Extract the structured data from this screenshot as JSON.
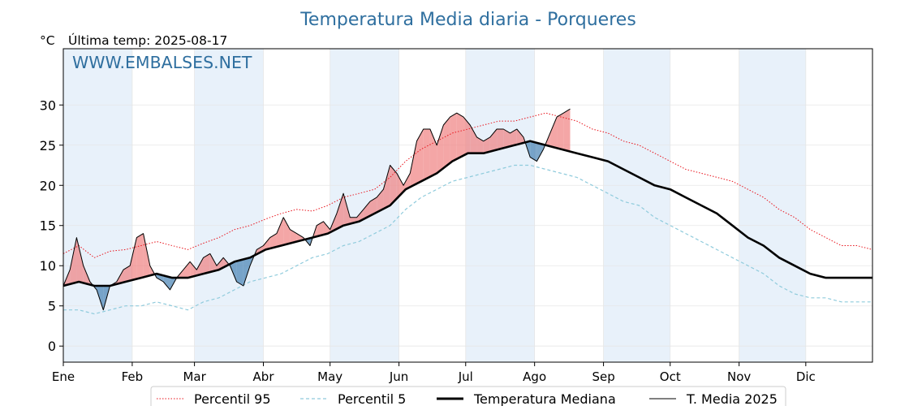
{
  "title": "Temperatura Media diaria - Porqueres",
  "unit": "°C",
  "last_temp": "Última temp: 2025-08-17",
  "watermark": "WWW.EMBALSES.NET",
  "colors": {
    "title": "#2f6f9f",
    "watermark": "#2f6f9f",
    "p95": "#e8141c",
    "p5": "#8fcbdc",
    "median": "#000000",
    "media2025": "#000000",
    "above_fill": "#f08080",
    "below_fill": "#4682b4",
    "month_band": "#e8f1fa"
  },
  "chart_data": {
    "type": "line",
    "x_unit": "day of year",
    "xlim": [
      1,
      365
    ],
    "ylim": [
      -2,
      37
    ],
    "y_ticks": [
      0,
      5,
      10,
      15,
      20,
      25,
      30
    ],
    "months": [
      {
        "label": "Ene",
        "day": 1
      },
      {
        "label": "Feb",
        "day": 32
      },
      {
        "label": "Mar",
        "day": 60
      },
      {
        "label": "Abr",
        "day": 91
      },
      {
        "label": "May",
        "day": 121
      },
      {
        "label": "Jun",
        "day": 152
      },
      {
        "label": "Jul",
        "day": 182
      },
      {
        "label": "Ago",
        "day": 213
      },
      {
        "label": "Sep",
        "day": 244
      },
      {
        "label": "Oct",
        "day": 274
      },
      {
        "label": "Nov",
        "day": 305
      },
      {
        "label": "Dic",
        "day": 335
      }
    ],
    "legend_position": "bottom-center",
    "grid": true,
    "series": [
      {
        "name": "Percentil 95",
        "style": "dotted",
        "x": [
          1,
          8,
          15,
          22,
          29,
          36,
          43,
          50,
          57,
          64,
          71,
          78,
          85,
          92,
          99,
          106,
          113,
          120,
          127,
          134,
          141,
          148,
          155,
          162,
          169,
          176,
          183,
          190,
          197,
          204,
          211,
          218,
          225,
          232,
          239,
          246,
          253,
          260,
          267,
          274,
          281,
          288,
          295,
          302,
          309,
          316,
          323,
          330,
          337,
          344,
          351,
          358,
          365
        ],
        "y": [
          11.5,
          12.5,
          11.0,
          11.8,
          12.0,
          12.5,
          13.0,
          12.5,
          12.0,
          12.8,
          13.5,
          14.5,
          15.0,
          15.8,
          16.5,
          17.0,
          16.8,
          17.5,
          18.5,
          19.0,
          19.5,
          21.0,
          23.0,
          24.5,
          25.5,
          26.5,
          27.0,
          27.5,
          28.0,
          28.0,
          28.5,
          29.0,
          28.5,
          28.0,
          27.0,
          26.5,
          25.5,
          25.0,
          24.0,
          23.0,
          22.0,
          21.5,
          21.0,
          20.5,
          19.5,
          18.5,
          17.0,
          16.0,
          14.5,
          13.5,
          12.5,
          12.5,
          12.0
        ]
      },
      {
        "name": "Percentil 5",
        "style": "dashed",
        "x": [
          1,
          8,
          15,
          22,
          29,
          36,
          43,
          50,
          57,
          64,
          71,
          78,
          85,
          92,
          99,
          106,
          113,
          120,
          127,
          134,
          141,
          148,
          155,
          162,
          169,
          176,
          183,
          190,
          197,
          204,
          211,
          218,
          225,
          232,
          239,
          246,
          253,
          260,
          267,
          274,
          281,
          288,
          295,
          302,
          309,
          316,
          323,
          330,
          337,
          344,
          351,
          358,
          365
        ],
        "y": [
          4.5,
          4.5,
          4.0,
          4.5,
          5.0,
          5.0,
          5.5,
          5.0,
          4.5,
          5.5,
          6.0,
          7.0,
          8.0,
          8.5,
          9.0,
          10.0,
          11.0,
          11.5,
          12.5,
          13.0,
          14.0,
          15.0,
          17.0,
          18.5,
          19.5,
          20.5,
          21.0,
          21.5,
          22.0,
          22.5,
          22.5,
          22.0,
          21.5,
          21.0,
          20.0,
          19.0,
          18.0,
          17.5,
          16.0,
          15.0,
          14.0,
          13.0,
          12.0,
          11.0,
          10.0,
          9.0,
          7.5,
          6.5,
          6.0,
          6.0,
          5.5,
          5.5,
          5.5
        ]
      },
      {
        "name": "Temperatura Mediana",
        "style": "solid-bold",
        "x": [
          1,
          8,
          15,
          22,
          29,
          36,
          43,
          50,
          57,
          64,
          71,
          78,
          85,
          92,
          99,
          106,
          113,
          120,
          127,
          134,
          141,
          148,
          155,
          162,
          169,
          176,
          183,
          190,
          197,
          204,
          211,
          218,
          225,
          232,
          239,
          246,
          253,
          260,
          267,
          274,
          281,
          288,
          295,
          302,
          309,
          316,
          323,
          330,
          337,
          344,
          351,
          358,
          365
        ],
        "y": [
          7.5,
          8.0,
          7.5,
          7.5,
          8.0,
          8.5,
          9.0,
          8.5,
          8.5,
          9.0,
          9.5,
          10.5,
          11.0,
          12.0,
          12.5,
          13.0,
          13.5,
          14.0,
          15.0,
          15.5,
          16.5,
          17.5,
          19.5,
          20.5,
          21.5,
          23.0,
          24.0,
          24.0,
          24.5,
          25.0,
          25.5,
          25.0,
          24.5,
          24.0,
          23.5,
          23.0,
          22.0,
          21.0,
          20.0,
          19.5,
          18.5,
          17.5,
          16.5,
          15.0,
          13.5,
          12.5,
          11.0,
          10.0,
          9.0,
          8.5,
          8.5,
          8.5,
          8.5
        ]
      },
      {
        "name": "T. Media 2025",
        "style": "solid-thin",
        "x": [
          1,
          4,
          7,
          10,
          13,
          16,
          19,
          22,
          25,
          28,
          31,
          34,
          37,
          40,
          43,
          46,
          49,
          52,
          55,
          58,
          61,
          64,
          67,
          70,
          73,
          76,
          79,
          82,
          85,
          88,
          91,
          94,
          97,
          100,
          103,
          106,
          109,
          112,
          115,
          118,
          121,
          124,
          127,
          130,
          133,
          136,
          139,
          142,
          145,
          148,
          151,
          154,
          157,
          160,
          163,
          166,
          169,
          172,
          175,
          178,
          181,
          184,
          187,
          190,
          193,
          196,
          199,
          202,
          205,
          208,
          211,
          214,
          217,
          220,
          223,
          226,
          229
        ],
        "y": [
          7.5,
          9.5,
          13.5,
          10.0,
          8.0,
          7.0,
          4.5,
          7.5,
          8.0,
          9.5,
          10.0,
          13.5,
          14.0,
          10.0,
          8.5,
          8.0,
          7.0,
          8.5,
          9.5,
          10.5,
          9.5,
          11.0,
          11.5,
          10.0,
          11.0,
          10.0,
          8.0,
          7.5,
          10.0,
          12.0,
          12.5,
          13.5,
          14.0,
          16.0,
          14.5,
          14.0,
          13.5,
          12.5,
          15.0,
          15.5,
          14.5,
          16.5,
          19.0,
          16.0,
          16.0,
          17.0,
          18.0,
          18.5,
          19.5,
          22.5,
          21.5,
          20.0,
          21.5,
          25.5,
          27.0,
          27.0,
          25.0,
          27.5,
          28.5,
          29.0,
          28.5,
          27.5,
          26.0,
          25.5,
          26.0,
          27.0,
          27.0,
          26.5,
          27.0,
          26.0,
          23.5,
          23.0,
          24.5,
          26.5,
          28.5,
          29.0,
          29.5
        ]
      }
    ]
  },
  "legend": {
    "items": [
      {
        "label": "Percentil 95"
      },
      {
        "label": "Percentil 5"
      },
      {
        "label": "Temperatura Mediana"
      },
      {
        "label": "T. Media 2025"
      }
    ]
  }
}
